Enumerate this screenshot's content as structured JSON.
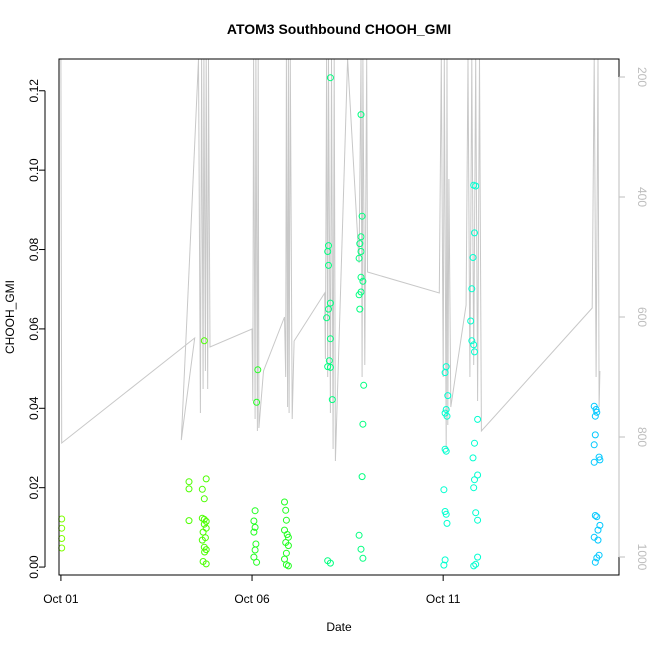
{
  "chart_data": {
    "type": "scatter",
    "title": "ATOM3 Southbound CHOOH_GMI",
    "xlabel": "Date",
    "ylabel": "CHOOH_GMI",
    "x_ticks": [
      {
        "day": 1,
        "label": "Oct 01"
      },
      {
        "day": 6,
        "label": "Oct 06"
      },
      {
        "day": 11,
        "label": "Oct 11"
      }
    ],
    "xlim": [
      0.95,
      15.6
    ],
    "ylim": [
      -0.002,
      0.128
    ],
    "y_ticks": [
      "0.00",
      "0.02",
      "0.04",
      "0.06",
      "0.08",
      "0.10",
      "0.12"
    ],
    "secondary_axis": {
      "quantity": "pressure",
      "range": [
        1030,
        170
      ],
      "ticks": [
        200,
        400,
        600,
        800,
        1000
      ],
      "color": "#bdbdbd"
    },
    "colors": {
      "line": "#c8c8c8",
      "axis": "#000000",
      "right_axis": "#bdbdbd"
    },
    "grid": false,
    "legend": "none",
    "series": [
      {
        "color": "#7FFF00",
        "points": [
          [
            1.02,
            0.0121
          ],
          [
            1.02,
            0.0098
          ],
          [
            1.02,
            0.0072
          ],
          [
            1.02,
            0.0048
          ]
        ]
      },
      {
        "color": "#4CFF00",
        "points": [
          [
            4.35,
            0.0215
          ],
          [
            4.35,
            0.0197
          ],
          [
            4.35,
            0.0117
          ],
          [
            4.75,
            0.057
          ],
          [
            4.8,
            0.0222
          ],
          [
            4.7,
            0.0196
          ],
          [
            4.75,
            0.0172
          ],
          [
            4.7,
            0.0123
          ],
          [
            4.75,
            0.012
          ],
          [
            4.8,
            0.0115
          ],
          [
            4.75,
            0.0108
          ],
          [
            4.8,
            0.0098
          ],
          [
            4.72,
            0.0088
          ],
          [
            4.78,
            0.0074
          ],
          [
            4.7,
            0.0068
          ],
          [
            4.75,
            0.005
          ],
          [
            4.8,
            0.0044
          ],
          [
            4.76,
            0.0038
          ],
          [
            4.72,
            0.0014
          ],
          [
            4.8,
            0.0008
          ]
        ]
      },
      {
        "color": "#22FF22",
        "points": [
          [
            6.15,
            0.0497
          ],
          [
            6.12,
            0.0415
          ],
          [
            6.08,
            0.0142
          ],
          [
            6.05,
            0.0116
          ],
          [
            6.08,
            0.01
          ],
          [
            6.05,
            0.0088
          ],
          [
            6.1,
            0.0058
          ],
          [
            6.08,
            0.0043
          ],
          [
            6.05,
            0.0025
          ],
          [
            6.12,
            0.0012
          ],
          [
            6.85,
            0.0164
          ],
          [
            6.88,
            0.0143
          ],
          [
            6.9,
            0.0118
          ],
          [
            6.85,
            0.0093
          ],
          [
            6.92,
            0.0082
          ],
          [
            6.95,
            0.0075
          ],
          [
            6.88,
            0.0062
          ],
          [
            6.95,
            0.0054
          ],
          [
            6.9,
            0.0035
          ],
          [
            6.85,
            0.002
          ],
          [
            6.9,
            0.0006
          ],
          [
            6.95,
            0.0003
          ]
        ]
      },
      {
        "color": "#00FF7F",
        "points": [
          [
            8.05,
            0.1233
          ],
          [
            8.0,
            0.081
          ],
          [
            7.98,
            0.0795
          ],
          [
            8.0,
            0.076
          ],
          [
            8.05,
            0.0665
          ],
          [
            8.0,
            0.065
          ],
          [
            7.95,
            0.0628
          ],
          [
            8.05,
            0.0575
          ],
          [
            8.02,
            0.052
          ],
          [
            7.98,
            0.0505
          ],
          [
            8.05,
            0.0503
          ],
          [
            8.1,
            0.0422
          ],
          [
            7.98,
            0.0016
          ],
          [
            8.05,
            0.001
          ],
          [
            8.85,
            0.114
          ],
          [
            8.88,
            0.0884
          ],
          [
            8.85,
            0.0832
          ],
          [
            8.82,
            0.0815
          ],
          [
            8.85,
            0.0795
          ],
          [
            8.8,
            0.0778
          ],
          [
            8.85,
            0.073
          ],
          [
            8.9,
            0.072
          ],
          [
            8.85,
            0.0693
          ],
          [
            8.8,
            0.0686
          ],
          [
            8.82,
            0.065
          ],
          [
            8.92,
            0.0458
          ],
          [
            8.9,
            0.036
          ],
          [
            8.88,
            0.0228
          ],
          [
            8.8,
            0.008
          ],
          [
            8.85,
            0.0045
          ],
          [
            8.9,
            0.0022
          ]
        ]
      },
      {
        "color": "#00FFD0",
        "points": [
          [
            11.08,
            0.0505
          ],
          [
            11.05,
            0.049
          ],
          [
            11.12,
            0.0432
          ],
          [
            11.08,
            0.0397
          ],
          [
            11.05,
            0.0388
          ],
          [
            11.1,
            0.038
          ],
          [
            11.05,
            0.0297
          ],
          [
            11.08,
            0.0292
          ],
          [
            11.02,
            0.0195
          ],
          [
            11.05,
            0.014
          ],
          [
            11.08,
            0.0133
          ],
          [
            11.1,
            0.011
          ],
          [
            11.05,
            0.0018
          ],
          [
            11.02,
            0.0005
          ],
          [
            11.8,
            0.0962
          ],
          [
            11.85,
            0.096
          ],
          [
            11.82,
            0.0842
          ],
          [
            11.78,
            0.078
          ],
          [
            11.75,
            0.0701
          ],
          [
            11.72,
            0.062
          ],
          [
            11.75,
            0.057
          ],
          [
            11.8,
            0.056
          ],
          [
            11.82,
            0.0542
          ],
          [
            11.9,
            0.0372
          ],
          [
            11.82,
            0.0312
          ],
          [
            11.78,
            0.0275
          ],
          [
            11.9,
            0.0232
          ],
          [
            11.82,
            0.022
          ],
          [
            11.8,
            0.02
          ],
          [
            11.85,
            0.0137
          ],
          [
            11.9,
            0.0118
          ],
          [
            11.9,
            0.0025
          ],
          [
            11.85,
            0.0007
          ],
          [
            11.8,
            0.0003
          ]
        ]
      },
      {
        "color": "#00C8FF",
        "points": [
          [
            14.95,
            0.0405
          ],
          [
            15.0,
            0.0397
          ],
          [
            15.02,
            0.039
          ],
          [
            14.98,
            0.038
          ],
          [
            14.98,
            0.0333
          ],
          [
            14.95,
            0.0308
          ],
          [
            15.08,
            0.0277
          ],
          [
            15.1,
            0.027
          ],
          [
            14.95,
            0.0264
          ],
          [
            14.98,
            0.013
          ],
          [
            15.02,
            0.0127
          ],
          [
            15.1,
            0.0105
          ],
          [
            15.05,
            0.0093
          ],
          [
            14.95,
            0.0075
          ],
          [
            15.05,
            0.0068
          ],
          [
            15.08,
            0.003
          ],
          [
            15.02,
            0.0023
          ],
          [
            14.98,
            0.0012
          ]
        ]
      }
    ],
    "pressure_line": {
      "color": "#c8c8c8",
      "points": [
        [
          1.0,
          170
        ],
        [
          1.02,
          810
        ],
        [
          4.5,
          635
        ],
        [
          4.15,
          805
        ],
        [
          4.3,
          595
        ],
        [
          4.6,
          170
        ],
        [
          4.65,
          760
        ],
        [
          4.68,
          170
        ],
        [
          4.72,
          720
        ],
        [
          4.74,
          170
        ],
        [
          4.78,
          690
        ],
        [
          4.8,
          170
        ],
        [
          4.84,
          720
        ],
        [
          4.86,
          170
        ],
        [
          4.9,
          650
        ],
        [
          6.0,
          620
        ],
        [
          6.02,
          740
        ],
        [
          6.04,
          170
        ],
        [
          6.08,
          770
        ],
        [
          6.1,
          170
        ],
        [
          6.14,
          790
        ],
        [
          6.16,
          170
        ],
        [
          6.18,
          785
        ],
        [
          6.3,
          690
        ],
        [
          6.85,
          600
        ],
        [
          6.88,
          700
        ],
        [
          6.9,
          170
        ],
        [
          6.93,
          750
        ],
        [
          6.95,
          170
        ],
        [
          6.97,
          760
        ],
        [
          7.0,
          170
        ],
        [
          7.05,
          770
        ],
        [
          7.1,
          640
        ],
        [
          7.9,
          560
        ],
        [
          7.92,
          670
        ],
        [
          7.95,
          170
        ],
        [
          7.98,
          700
        ],
        [
          8.0,
          170
        ],
        [
          8.05,
          760
        ],
        [
          8.08,
          170
        ],
        [
          8.12,
          820
        ],
        [
          8.15,
          170
        ],
        [
          8.18,
          840
        ],
        [
          8.5,
          170
        ],
        [
          8.8,
          510
        ],
        [
          8.85,
          170
        ],
        [
          8.88,
          700
        ],
        [
          8.9,
          170
        ],
        [
          8.95,
          680
        ],
        [
          9.0,
          170
        ],
        [
          9.02,
          525
        ],
        [
          10.9,
          560
        ],
        [
          10.95,
          170
        ],
        [
          11.0,
          700
        ],
        [
          11.03,
          170
        ],
        [
          11.08,
          820
        ],
        [
          11.1,
          170
        ],
        [
          11.12,
          780
        ],
        [
          11.15,
          370
        ],
        [
          11.2,
          750
        ],
        [
          11.6,
          580
        ],
        [
          11.65,
          170
        ],
        [
          11.7,
          700
        ],
        [
          11.75,
          170
        ],
        [
          11.8,
          680
        ],
        [
          11.85,
          170
        ],
        [
          11.9,
          740
        ],
        [
          11.95,
          170
        ],
        [
          12.0,
          790
        ],
        [
          14.9,
          585
        ],
        [
          14.95,
          170
        ],
        [
          15.0,
          700
        ],
        [
          15.05,
          170
        ],
        [
          15.08,
          750
        ],
        [
          15.1,
          690
        ]
      ]
    }
  }
}
